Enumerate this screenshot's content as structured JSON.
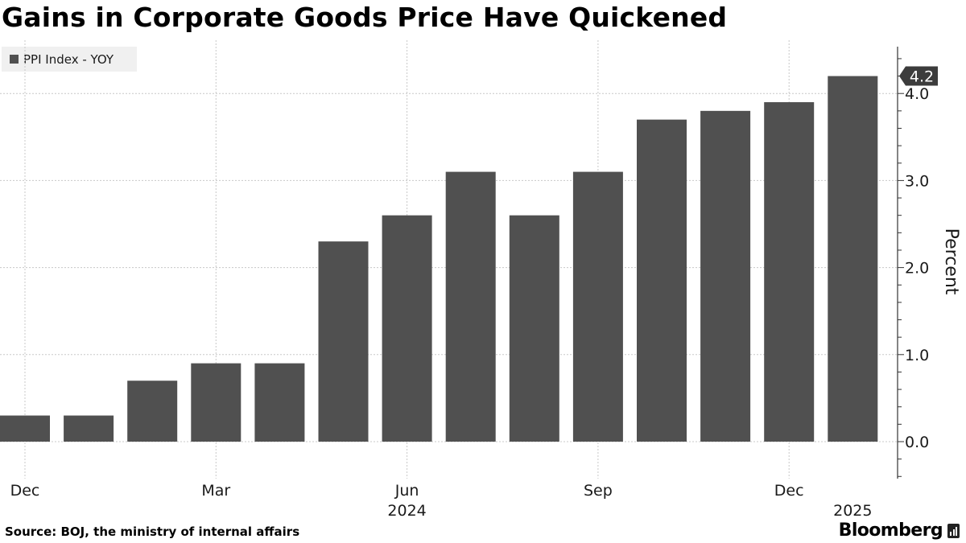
{
  "title": "Gains in Corporate Goods Price Have Quickened",
  "legend": {
    "label": "PPI Index - YOY",
    "color": "#505050"
  },
  "source": "Source: BOJ, the ministry of internal affairs",
  "brand": "Bloomberg",
  "chart_data": {
    "type": "bar",
    "title": "Gains in Corporate Goods Price Have Quickened",
    "categories": [
      "Dec 2023",
      "Jan 2024",
      "Feb 2024",
      "Mar 2024",
      "Apr 2024",
      "May 2024",
      "Jun 2024",
      "Jul 2024",
      "Aug 2024",
      "Sep 2024",
      "Oct 2024",
      "Nov 2024",
      "Dec 2024",
      "Jan 2025"
    ],
    "series": [
      {
        "name": "PPI Index - YOY",
        "values": [
          0.3,
          0.3,
          0.7,
          0.9,
          0.9,
          2.3,
          2.6,
          3.1,
          2.6,
          3.1,
          3.7,
          3.8,
          3.9,
          4.2
        ]
      }
    ],
    "bar_color": "#505050",
    "ylabel": "Percent",
    "ylim": [
      -0.4,
      4.55
    ],
    "yticks": [
      0,
      1,
      2,
      3,
      4
    ],
    "ytick_labels": [
      "0.0",
      "1.0",
      "2.0",
      "3.0",
      "4.0"
    ],
    "xticks": [
      {
        "index": 0,
        "label": "Dec",
        "year": ""
      },
      {
        "index": 3,
        "label": "Mar",
        "year": ""
      },
      {
        "index": 6,
        "label": "Jun",
        "year": "2024"
      },
      {
        "index": 9,
        "label": "Sep",
        "year": ""
      },
      {
        "index": 12,
        "label": "Dec",
        "year": ""
      },
      {
        "index": 13,
        "label": "",
        "year": "2025"
      }
    ],
    "last_value_label": "4.2",
    "grid": true,
    "legend_position": "top-left"
  }
}
